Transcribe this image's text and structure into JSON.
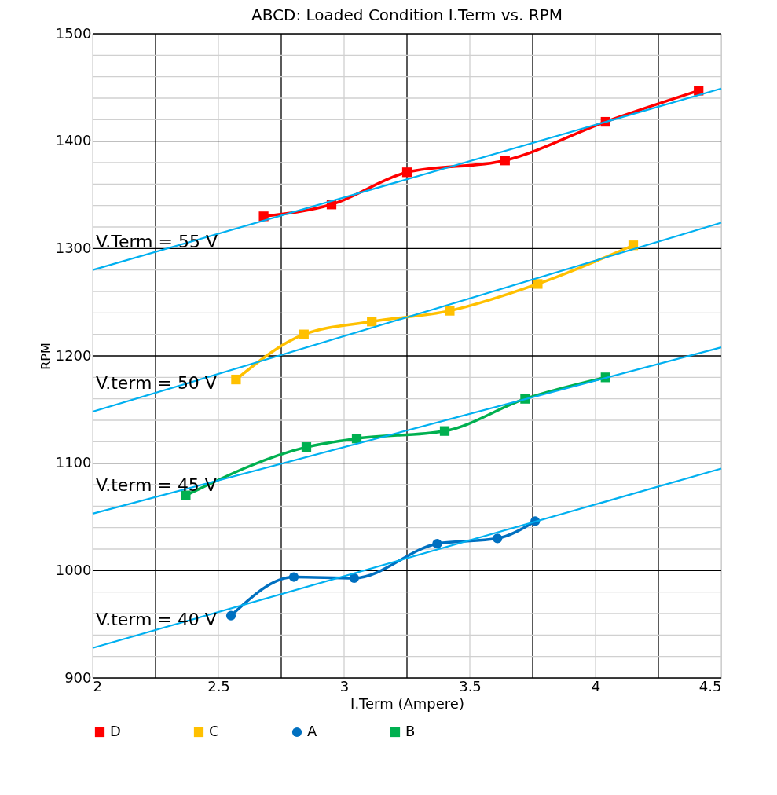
{
  "chart_data": {
    "type": "line",
    "title": "ABCD: Loaded Condition I.Term vs. RPM",
    "xlabel": "I.Term (Ampere)",
    "ylabel": "RPM",
    "xlim": [
      2,
      4.5
    ],
    "ylim": [
      900,
      1500
    ],
    "xticks": [
      2,
      {
        "value": 2.25,
        "label": null
      },
      2.5,
      {
        "value": 2.75,
        "label": null
      },
      3,
      {
        "value": 3.25,
        "label": null
      },
      3.5,
      {
        "value": 3.75,
        "label": null
      },
      4,
      {
        "value": 4.25,
        "label": null
      },
      4.5
    ],
    "yticks": [
      900,
      {
        "value": 920,
        "label": null
      },
      {
        "value": 940,
        "label": null
      },
      {
        "value": 960,
        "label": null
      },
      {
        "value": 980,
        "label": null
      },
      1000,
      {
        "value": 1020,
        "label": null
      },
      {
        "value": 1040,
        "label": null
      },
      {
        "value": 1060,
        "label": null
      },
      {
        "value": 1080,
        "label": null
      },
      1100,
      {
        "value": 1120,
        "label": null
      },
      {
        "value": 1140,
        "label": null
      },
      {
        "value": 1160,
        "label": null
      },
      {
        "value": 1180,
        "label": null
      },
      1200,
      {
        "value": 1220,
        "label": null
      },
      {
        "value": 1240,
        "label": null
      },
      {
        "value": 1260,
        "label": null
      },
      {
        "value": 1280,
        "label": null
      },
      1300,
      {
        "value": 1320,
        "label": null
      },
      {
        "value": 1340,
        "label": null
      },
      {
        "value": 1360,
        "label": null
      },
      {
        "value": 1380,
        "label": null
      },
      1400,
      {
        "value": 1420,
        "label": null
      },
      {
        "value": 1440,
        "label": null
      },
      {
        "value": 1460,
        "label": null
      },
      {
        "value": 1480,
        "label": null
      },
      1500
    ],
    "grid": true,
    "legend": "bottom",
    "series": [
      {
        "name": "D",
        "color": "#ff0000",
        "marker": "square",
        "x": [
          2.68,
          2.95,
          3.25,
          3.64,
          4.04,
          4.41
        ],
        "values": [
          1330,
          1341,
          1371,
          1382,
          1418,
          1447
        ]
      },
      {
        "name": "C",
        "color": "#ffc000",
        "marker": "square",
        "x": [
          2.57,
          2.84,
          3.11,
          3.42,
          3.77,
          4.15
        ],
        "values": [
          1178,
          1220,
          1232,
          1242,
          1267,
          1303
        ]
      },
      {
        "name": "A",
        "color": "#0070c0",
        "marker": "circle",
        "x": [
          2.55,
          2.8,
          3.04,
          3.37,
          3.61,
          3.76
        ],
        "values": [
          958,
          994,
          993,
          1025,
          1030,
          1046
        ]
      },
      {
        "name": "B",
        "color": "#00b050",
        "marker": "square",
        "x": [
          2.37,
          2.85,
          3.05,
          3.4,
          3.72,
          4.04
        ],
        "values": [
          1070,
          1115,
          1123,
          1130,
          1160,
          1180
        ]
      },
      {
        "color": "#00b0f0",
        "marker": "none",
        "x": [
          2,
          4.5
        ],
        "values": [
          1280,
          1449
        ]
      },
      {
        "color": "#00b0f0",
        "marker": "none",
        "x": [
          2,
          4.5
        ],
        "values": [
          1148,
          1324
        ]
      },
      {
        "color": "#00b0f0",
        "marker": "none",
        "x": [
          2,
          4.5
        ],
        "values": [
          1053,
          1208
        ]
      },
      {
        "color": "#00b0f0",
        "marker": "none",
        "x": [
          2,
          4.5
        ],
        "values": [
          928,
          1095
        ]
      }
    ],
    "annotations": [
      "V.Term = 55 V",
      "V.term = 50 V",
      "V.term = 45 V",
      "V.term = 40 V"
    ]
  }
}
